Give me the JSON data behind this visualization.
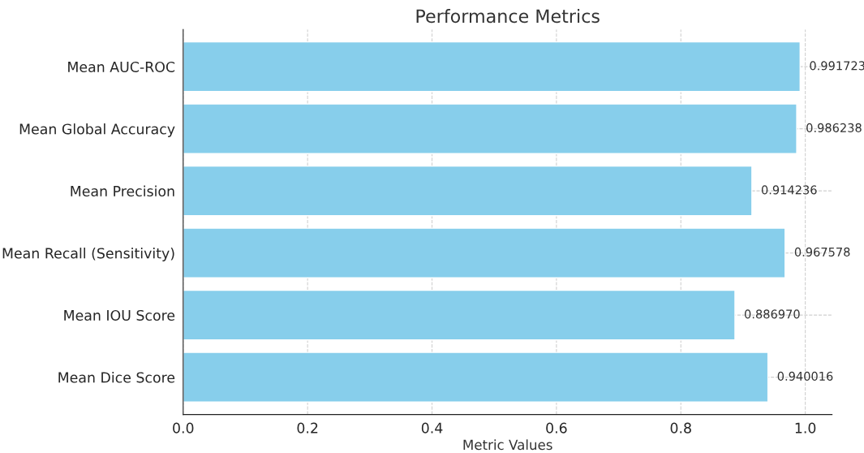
{
  "chart_data": {
    "type": "bar",
    "orientation": "horizontal",
    "title": "Performance Metrics",
    "xlabel": "Metric Values",
    "categories": [
      "Mean AUC-ROC",
      "Mean Global Accuracy",
      "Mean Precision",
      "Mean Recall (Sensitivity)",
      "Mean IOU Score",
      "Mean Dice Score"
    ],
    "values": [
      0.991723,
      0.986238,
      0.914236,
      0.967578,
      0.88697,
      0.940016
    ],
    "value_labels": [
      "0.991723",
      "0.986238",
      "0.914236",
      "0.967578",
      "0.886970",
      "0.940016"
    ],
    "color": "#87ceeb",
    "xlim": [
      0,
      1.043
    ],
    "xticks": [
      {
        "value": 0,
        "label": "0.0"
      },
      {
        "value": 0.2,
        "label": "0.2"
      },
      {
        "value": 0.4,
        "label": "0.4"
      },
      {
        "value": 0.6,
        "label": "0.6"
      },
      {
        "value": 0.8,
        "label": "0.8"
      },
      {
        "value": 1.0,
        "label": "1.0"
      }
    ],
    "grid": true,
    "legend": false
  }
}
